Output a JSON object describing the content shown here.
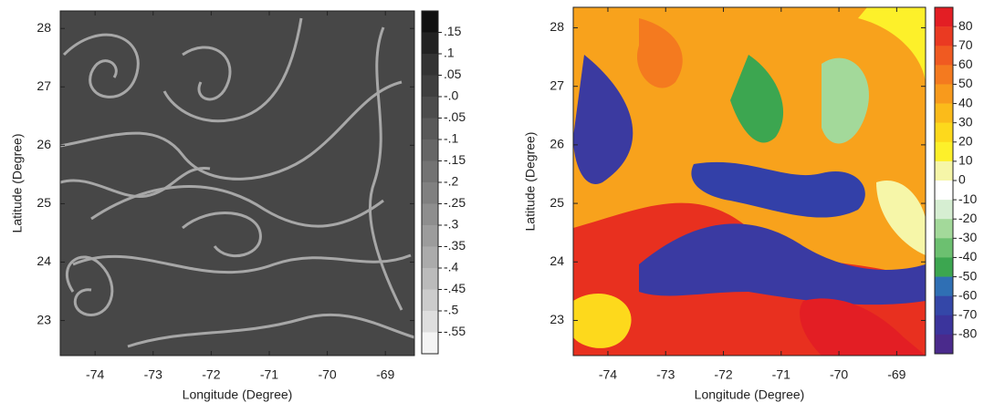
{
  "chart_data": [
    {
      "type": "heatmap",
      "xlabel": "Longitude (Degree)",
      "ylabel": "Latitude (Degree)",
      "xlim": [
        -74.6,
        -68.5
      ],
      "xticks": [
        -74,
        -73,
        -72,
        -71,
        -70,
        -69
      ],
      "ylim": [
        22.4,
        28.3
      ],
      "yticks": [
        23,
        24,
        25,
        26,
        27,
        28
      ],
      "colorbar": {
        "lim": [
          -0.6,
          0.2
        ],
        "ticks": [
          {
            "value": 0.15,
            "label": ".15"
          },
          {
            "value": 0.1,
            "label": ".1"
          },
          {
            "value": 0.05,
            "label": ".05"
          },
          {
            "value": 0,
            "label": "-.0"
          },
          {
            "value": -0.05,
            "label": "-.05"
          },
          {
            "value": -0.1,
            "label": "-.1"
          },
          {
            "value": -0.15,
            "label": "-.15"
          },
          {
            "value": -0.2,
            "label": "-.2"
          },
          {
            "value": -0.25,
            "label": "-.25"
          },
          {
            "value": -0.3,
            "label": "-.3"
          },
          {
            "value": -0.35,
            "label": "-.35"
          },
          {
            "value": -0.4,
            "label": "-.4"
          },
          {
            "value": -0.45,
            "label": "-.45"
          },
          {
            "value": -0.5,
            "label": "-.5"
          },
          {
            "value": -0.55,
            "label": "-.55"
          }
        ],
        "colors": [
          "#111111",
          "#222222",
          "#333333",
          "#3f3f3f",
          "#4c4c4c",
          "#595959",
          "#666666",
          "#737373",
          "#808080",
          "#8e8e8e",
          "#9c9c9c",
          "#ababab",
          "#bbbbbb",
          "#cccccc",
          "#dedede",
          "#f4f4f4"
        ]
      }
    },
    {
      "type": "heatmap",
      "xlabel": "Longitude (Degree)",
      "ylabel": "Latitude (Degree)",
      "xlim": [
        -74.6,
        -68.5
      ],
      "xticks": [
        -74,
        -73,
        -72,
        -71,
        -70,
        -69
      ],
      "ylim": [
        22.4,
        28.35
      ],
      "yticks": [
        23,
        24,
        25,
        26,
        27,
        28
      ],
      "colorbar": {
        "lim": [
          -90,
          90
        ],
        "ticks": [
          80,
          70,
          60,
          50,
          40,
          30,
          20,
          10,
          0,
          -10,
          -20,
          -30,
          -40,
          -50,
          -60,
          -70,
          -80
        ],
        "colors": [
          "#e31e24",
          "#ea3a22",
          "#f05a21",
          "#f47a1f",
          "#f89a1c",
          "#fbbb1a",
          "#fdd91c",
          "#fdf02a",
          "#f6f6a8",
          "#ffffff",
          "#d6eed2",
          "#a3d99a",
          "#6cc070",
          "#3ca650",
          "#2f6fb4",
          "#3447a8",
          "#3b349c",
          "#4a2a8c"
        ]
      }
    }
  ]
}
